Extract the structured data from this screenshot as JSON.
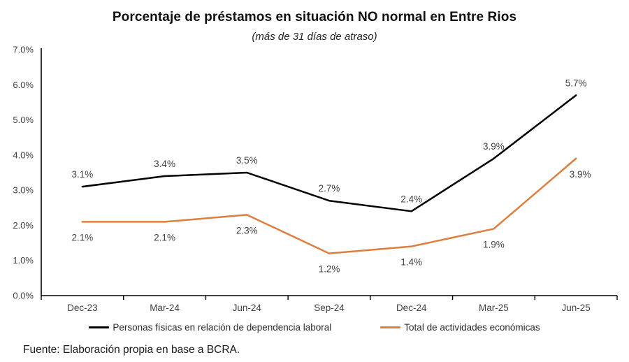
{
  "title": "Porcentaje de préstamos en situación NO normal en Entre Rios",
  "subtitle": "(más de 31 días de atraso)",
  "source": "Fuente: Elaboración propia en base a BCRA.",
  "colors": {
    "axis": "#000000",
    "tick_text": "#404040",
    "data_label_text": "#404040",
    "series_black": "#000000",
    "series_orange": "#DE7E3E"
  },
  "chart_data": {
    "type": "line",
    "categories": [
      "Dec-23",
      "Mar-24",
      "Jun-24",
      "Sep-24",
      "Dec-24",
      "Mar-25",
      "Jun-25"
    ],
    "series": [
      {
        "name": "Personas físicas en relación de dependencia laboral",
        "color": "#000000",
        "values": [
          3.1,
          3.4,
          3.5,
          2.7,
          2.4,
          3.9,
          5.7
        ],
        "labels": [
          "3.1%",
          "3.4%",
          "3.5%",
          "2.7%",
          "2.4%",
          "3.9%",
          "5.7%"
        ],
        "label_side": "above"
      },
      {
        "name": "Total de actividades económicas",
        "color": "#DE7E3E",
        "values": [
          2.1,
          2.1,
          2.3,
          1.2,
          1.4,
          1.9,
          3.9
        ],
        "labels": [
          "2.1%",
          "2.1%",
          "2.3%",
          "1.2%",
          "1.4%",
          "1.9%",
          "3.9%"
        ],
        "label_side": "below"
      }
    ],
    "ylim": [
      0,
      7
    ],
    "ytick_labels": [
      "0.0%",
      "1.0%",
      "2.0%",
      "3.0%",
      "4.0%",
      "5.0%",
      "6.0%",
      "7.0%"
    ],
    "grid": false,
    "legend_position": "bottom"
  }
}
